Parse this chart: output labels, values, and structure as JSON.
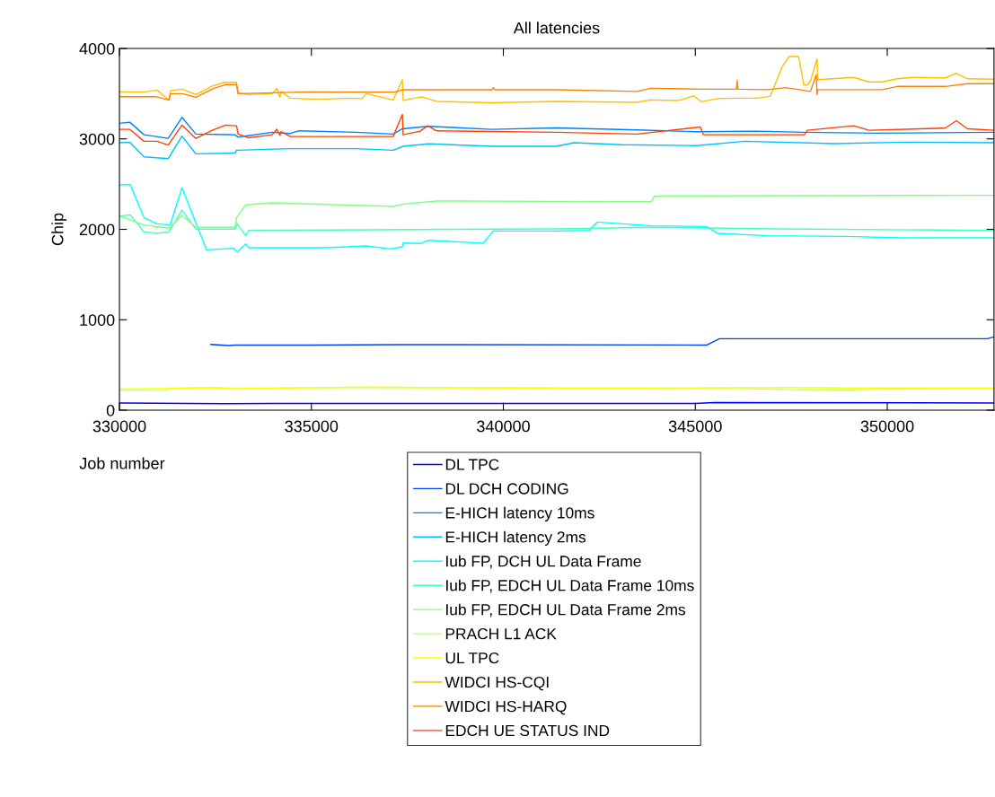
{
  "chart_data": {
    "type": "line",
    "title": "All latencies",
    "xlabel": "Job number",
    "ylabel": "Chip",
    "xlim": [
      330000,
      352780
    ],
    "xticks": [
      330000,
      335000,
      340000,
      345000,
      350000
    ],
    "ylim": [
      0,
      4000
    ],
    "yticks": [
      0,
      1000,
      2000,
      3000,
      4000
    ],
    "grid": false,
    "legend": "bottom",
    "marker": "none",
    "line_style": "solid",
    "series": [
      {
        "name": "DL TPC",
        "color": "#0000ff",
        "x": [
          330000,
          332700,
          334000,
          345000,
          345500,
          352780
        ],
        "values": [
          80,
          72,
          75,
          75,
          85,
          80
        ]
      },
      {
        "name": "DL DCH CODING",
        "color": "#0040ff",
        "x": [
          332380,
          332850,
          333000,
          335000,
          337300,
          345300,
          345630,
          352600,
          352780
        ],
        "values": [
          727,
          715,
          720,
          720,
          725,
          720,
          790,
          790,
          810
        ]
      },
      {
        "name": "E-HICH latency 10ms",
        "color": "#0080ff",
        "x": [
          330000,
          330270,
          330640,
          331270,
          331630,
          331990,
          333010,
          333090,
          333980,
          334450,
          334680,
          336160,
          337130,
          337370,
          338030,
          339700,
          341380,
          343480,
          345040,
          346590,
          347840,
          349710,
          352780
        ],
        "values": [
          3172,
          3185,
          3046,
          3006,
          3238,
          3053,
          3046,
          3020,
          3073,
          3060,
          3090,
          3073,
          3053,
          3112,
          3139,
          3106,
          3122,
          3099,
          3079,
          3086,
          3073,
          3063,
          3073
        ]
      },
      {
        "name": "E-HICH latency 2ms",
        "color": "#00bfff",
        "x": [
          330000,
          330270,
          330640,
          331270,
          331630,
          331990,
          333010,
          333050,
          334450,
          336160,
          337130,
          337390,
          338050,
          339700,
          341380,
          341840,
          343090,
          345040,
          346290,
          348620,
          350490,
          352780
        ],
        "values": [
          2958,
          2962,
          2802,
          2782,
          3030,
          2835,
          2842,
          2875,
          2892,
          2892,
          2875,
          2918,
          2945,
          2918,
          2918,
          2958,
          2935,
          2925,
          2974,
          2948,
          2964,
          2958
        ]
      },
      {
        "name": "Iub FP, DCH UL Data Frame",
        "color": "#00ffff",
        "x": [
          330000,
          330280,
          330640,
          330980,
          331320,
          331630,
          332270,
          332970,
          333070,
          333290,
          333370,
          335380,
          336430,
          337060,
          337370,
          337390,
          337830,
          338060,
          339470,
          339740,
          341380,
          342230,
          342450,
          343870,
          345280,
          345590,
          346870,
          348930,
          350400,
          352780
        ],
        "values": [
          2492,
          2495,
          2128,
          2061,
          2048,
          2459,
          1773,
          1790,
          1750,
          1839,
          1796,
          1796,
          1816,
          1783,
          1806,
          1849,
          1843,
          1879,
          1846,
          1981,
          1981,
          1988,
          2081,
          2038,
          2031,
          1955,
          1929,
          1922,
          1906,
          1906
        ]
      },
      {
        "name": "Iub FP, EDCH UL Data Frame 10ms",
        "color": "#40ffbf",
        "x": [
          330000,
          330280,
          330640,
          330980,
          331290,
          331630,
          331990,
          333010,
          333070,
          333290,
          333370,
          341380,
          343870,
          347100,
          352780
        ],
        "values": [
          2147,
          2160,
          1972,
          1955,
          1972,
          2213,
          2002,
          2002,
          2061,
          1929,
          1988,
          2005,
          2022,
          2005,
          1988
        ]
      },
      {
        "name": "Iub FP, EDCH UL Data Frame 2ms",
        "color": "#80ff80",
        "x": [
          330000,
          330640,
          331290,
          331630,
          331990,
          333010,
          333050,
          333290,
          333980,
          337130,
          337390,
          338260,
          341380,
          343860,
          343940,
          352780
        ],
        "values": [
          2147,
          2048,
          2012,
          2154,
          2022,
          2022,
          2127,
          2270,
          2293,
          2253,
          2279,
          2313,
          2309,
          2306,
          2369,
          2376
        ]
      },
      {
        "name": "PRACH L1 ACK",
        "color": "#bfff80",
        "x": [
          330000,
          331250,
          331300,
          332500,
          333000,
          336000,
          346000,
          348000,
          349000,
          349800,
          352780
        ],
        "values": [
          220,
          222,
          238,
          250,
          240,
          250,
          240,
          225,
          222,
          232,
          240
        ]
      },
      {
        "name": "UL TPC",
        "color": "#ffff00",
        "x": [
          330000,
          331000,
          332000,
          333000,
          336500,
          338000,
          342000,
          347500,
          349000,
          352780
        ],
        "values": [
          235,
          240,
          245,
          240,
          255,
          250,
          243,
          250,
          245,
          245
        ]
      },
      {
        "name": "WIDCI HS-CQI",
        "color": "#ffbf00",
        "x": [
          330000,
          330670,
          330980,
          331290,
          331330,
          331640,
          331990,
          332420,
          332730,
          333050,
          333090,
          333360,
          333980,
          334100,
          334180,
          334210,
          334450,
          334910,
          335380,
          336000,
          336320,
          336430,
          337130,
          337370,
          337390,
          337870,
          338260,
          339700,
          341380,
          343480,
          343830,
          344570,
          344960,
          345160,
          345580,
          346090,
          346590,
          346950,
          347260,
          347440,
          347690,
          347830,
          347910,
          348000,
          348170,
          348190,
          349130,
          349520,
          349870,
          350260,
          350650,
          351510,
          351800,
          352090,
          352780
        ],
        "values": [
          3520,
          3520,
          3540,
          3430,
          3535,
          3550,
          3490,
          3585,
          3625,
          3625,
          3510,
          3490,
          3500,
          3560,
          3460,
          3525,
          3450,
          3440,
          3440,
          3450,
          3445,
          3500,
          3430,
          3655,
          3425,
          3465,
          3415,
          3400,
          3415,
          3405,
          3430,
          3425,
          3475,
          3410,
          3445,
          3450,
          3450,
          3470,
          3795,
          3910,
          3910,
          3595,
          3595,
          3640,
          3885,
          3655,
          3680,
          3630,
          3630,
          3665,
          3680,
          3675,
          3725,
          3665,
          3660
        ]
      },
      {
        "name": "WIDCI HS-HARQ",
        "color": "#ff8000",
        "x": [
          330000,
          330940,
          331290,
          331330,
          331640,
          331990,
          332460,
          332770,
          333050,
          333090,
          334910,
          337170,
          337370,
          339700,
          339740,
          339780,
          341380,
          343480,
          343830,
          345210,
          346070,
          346090,
          346110,
          346890,
          347360,
          348000,
          348150,
          348170,
          348190,
          349870,
          350260,
          351510,
          352090,
          352780
        ],
        "values": [
          3467,
          3467,
          3430,
          3500,
          3500,
          3460,
          3560,
          3600,
          3600,
          3500,
          3520,
          3517,
          3543,
          3543,
          3567,
          3543,
          3543,
          3525,
          3560,
          3550,
          3550,
          3645,
          3550,
          3545,
          3567,
          3525,
          3710,
          3490,
          3545,
          3545,
          3580,
          3580,
          3610,
          3610
        ]
      },
      {
        "name": "EDCH UE STATUS IND",
        "color": "#ff4000",
        "x": [
          330000,
          330270,
          330640,
          330980,
          331270,
          331630,
          331990,
          332420,
          332770,
          333050,
          333090,
          333360,
          333980,
          334100,
          334180,
          334210,
          334450,
          336240,
          337130,
          337370,
          337390,
          337830,
          338030,
          338260,
          341380,
          343480,
          345130,
          345210,
          347840,
          347920,
          349130,
          349520,
          351510,
          351800,
          352090,
          352780
        ],
        "values": [
          3106,
          3106,
          2974,
          2974,
          2931,
          3152,
          3006,
          3096,
          3152,
          3145,
          3053,
          3013,
          3046,
          3106,
          3040,
          3080,
          3026,
          3026,
          3026,
          3271,
          3046,
          3086,
          3145,
          3089,
          3073,
          3053,
          3132,
          3046,
          3046,
          3096,
          3145,
          3096,
          3119,
          3201,
          3112,
          3096
        ]
      }
    ]
  }
}
